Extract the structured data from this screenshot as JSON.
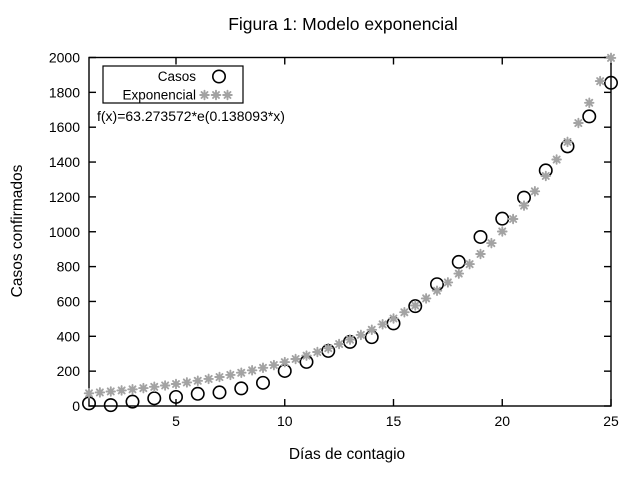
{
  "figure": {
    "background": "#ffffff",
    "axis_color": "#000000"
  },
  "chart_data": {
    "type": "scatter",
    "title": "Figura 1: Modelo exponencial",
    "xlabel": "Días de contagio",
    "ylabel": "Casos confirmados",
    "xlim": [
      1,
      25
    ],
    "ylim": [
      0,
      2000
    ],
    "xticks": [
      5,
      10,
      15,
      20,
      25
    ],
    "yticks": [
      0,
      200,
      400,
      600,
      800,
      1000,
      1200,
      1400,
      1600,
      1800,
      2000
    ],
    "grid": false,
    "legend_position": "top-left",
    "annotation": "f(x)=63.273572*e(0.138093*x)",
    "series": [
      {
        "name": "Casos",
        "marker": "open-circle",
        "color": "#000000",
        "x": [
          1,
          2,
          3,
          4,
          5,
          6,
          7,
          8,
          9,
          10,
          11,
          12,
          13,
          14,
          15,
          16,
          17,
          18,
          19,
          20,
          21,
          22,
          23,
          24,
          25
        ],
        "values": [
          15,
          5,
          25,
          44,
          52,
          70,
          78,
          101,
          133,
          201,
          253,
          316,
          368,
          395,
          474,
          573,
          699,
          827,
          970,
          1075,
          1196,
          1352,
          1490,
          1662,
          1855
        ]
      },
      {
        "name": "Exponencial",
        "marker": "asterisk",
        "color": "#a3a3a3",
        "fit": {
          "a": 63.273572,
          "b": 0.138093,
          "x_start": 1,
          "x_end": 25,
          "x_step": 0.5
        }
      }
    ]
  }
}
